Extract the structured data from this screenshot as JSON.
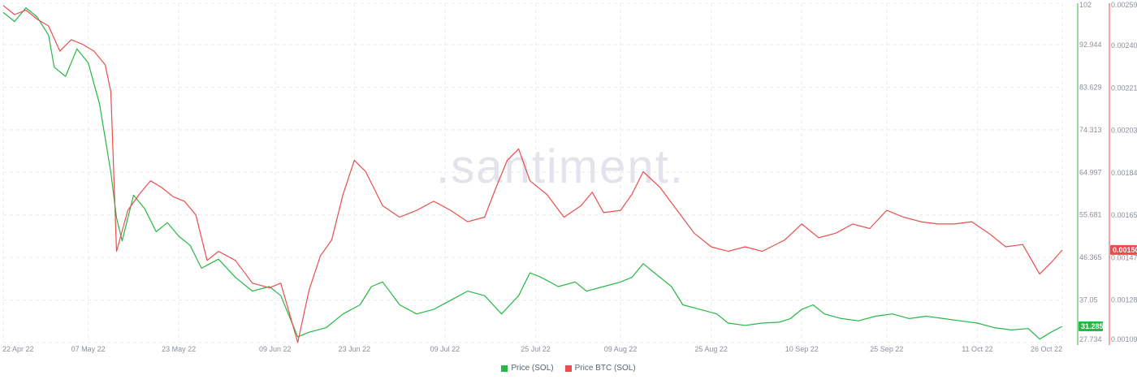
{
  "watermark": ".santiment.",
  "colors": {
    "sol_price": "#26b845",
    "btc_price": "#e94d4d",
    "grid": "#e6e8ec",
    "axis": "#8a8f99"
  },
  "chart_data": {
    "type": "line",
    "x_dates": [
      "22 Apr 22",
      "07 May 22",
      "23 May 22",
      "09 Jun 22",
      "23 Jun 22",
      "09 Jul 22",
      "25 Jul 22",
      "09 Aug 22",
      "25 Aug 22",
      "10 Sep 22",
      "25 Sep 22",
      "11 Oct 22",
      "26 Oct 22"
    ],
    "x_range": [
      "2022-04-22",
      "2022-10-26"
    ],
    "y_left": {
      "ticks": [
        "102",
        "92.944",
        "83.629",
        "74.313",
        "64.997",
        "55.681",
        "46.365",
        "37.05",
        "27.734"
      ],
      "range": [
        27.734,
        102
      ],
      "current_value": "31.285"
    },
    "y_right": {
      "ticks": [
        "0.00259",
        "0.002405",
        "0.002218",
        "0.002032",
        "0.001845",
        "0.001659",
        "0.001472",
        "0.001286",
        "0.001099"
      ],
      "range": [
        0.001099,
        0.00259
      ],
      "current_value": "0.001506"
    },
    "grid": true,
    "legend_position": "bottom-center",
    "series": [
      {
        "name": "Price (SOL)",
        "axis": "left",
        "points": [
          [
            "2022-04-22",
            100
          ],
          [
            "2022-04-24",
            98
          ],
          [
            "2022-04-26",
            101
          ],
          [
            "2022-04-28",
            99
          ],
          [
            "2022-04-30",
            95
          ],
          [
            "2022-05-01",
            88
          ],
          [
            "2022-05-03",
            86
          ],
          [
            "2022-05-05",
            92
          ],
          [
            "2022-05-07",
            89
          ],
          [
            "2022-05-09",
            80
          ],
          [
            "2022-05-11",
            65
          ],
          [
            "2022-05-12",
            55
          ],
          [
            "2022-05-13",
            50
          ],
          [
            "2022-05-15",
            60
          ],
          [
            "2022-05-17",
            57
          ],
          [
            "2022-05-19",
            52
          ],
          [
            "2022-05-21",
            54
          ],
          [
            "2022-05-23",
            51
          ],
          [
            "2022-05-25",
            49
          ],
          [
            "2022-05-27",
            44
          ],
          [
            "2022-05-30",
            46
          ],
          [
            "2022-06-02",
            42
          ],
          [
            "2022-06-05",
            39
          ],
          [
            "2022-06-08",
            40
          ],
          [
            "2022-06-10",
            38
          ],
          [
            "2022-06-13",
            29
          ],
          [
            "2022-06-15",
            30
          ],
          [
            "2022-06-18",
            31
          ],
          [
            "2022-06-21",
            34
          ],
          [
            "2022-06-24",
            36
          ],
          [
            "2022-06-26",
            40
          ],
          [
            "2022-06-28",
            41
          ],
          [
            "2022-07-01",
            36
          ],
          [
            "2022-07-04",
            34
          ],
          [
            "2022-07-07",
            35
          ],
          [
            "2022-07-10",
            37
          ],
          [
            "2022-07-13",
            39
          ],
          [
            "2022-07-16",
            38
          ],
          [
            "2022-07-19",
            34
          ],
          [
            "2022-07-22",
            38
          ],
          [
            "2022-07-24",
            43
          ],
          [
            "2022-07-26",
            42
          ],
          [
            "2022-07-29",
            40
          ],
          [
            "2022-08-01",
            41
          ],
          [
            "2022-08-03",
            39
          ],
          [
            "2022-08-06",
            40
          ],
          [
            "2022-08-09",
            41
          ],
          [
            "2022-08-11",
            42
          ],
          [
            "2022-08-13",
            45
          ],
          [
            "2022-08-15",
            43
          ],
          [
            "2022-08-18",
            40
          ],
          [
            "2022-08-20",
            36
          ],
          [
            "2022-08-23",
            35
          ],
          [
            "2022-08-26",
            34
          ],
          [
            "2022-08-28",
            32
          ],
          [
            "2022-08-31",
            31.5
          ],
          [
            "2022-09-03",
            32
          ],
          [
            "2022-09-06",
            32.2
          ],
          [
            "2022-09-08",
            33
          ],
          [
            "2022-09-10",
            35
          ],
          [
            "2022-09-12",
            36
          ],
          [
            "2022-09-14",
            34
          ],
          [
            "2022-09-17",
            33
          ],
          [
            "2022-09-20",
            32.5
          ],
          [
            "2022-09-23",
            33.5
          ],
          [
            "2022-09-26",
            34
          ],
          [
            "2022-09-29",
            33
          ],
          [
            "2022-10-02",
            33.5
          ],
          [
            "2022-10-05",
            33
          ],
          [
            "2022-10-08",
            32.5
          ],
          [
            "2022-10-11",
            32
          ],
          [
            "2022-10-14",
            31
          ],
          [
            "2022-10-17",
            30.5
          ],
          [
            "2022-10-20",
            30.8
          ],
          [
            "2022-10-22",
            28.5
          ],
          [
            "2022-10-24",
            30
          ],
          [
            "2022-10-26",
            31.285
          ]
        ]
      },
      {
        "name": "Price BTC (SOL)",
        "axis": "right",
        "points": [
          [
            "2022-04-22",
            0.00258
          ],
          [
            "2022-04-24",
            0.00254
          ],
          [
            "2022-04-26",
            0.00256
          ],
          [
            "2022-04-28",
            0.00252
          ],
          [
            "2022-04-30",
            0.00249
          ],
          [
            "2022-05-02",
            0.00238
          ],
          [
            "2022-05-04",
            0.00243
          ],
          [
            "2022-05-06",
            0.00241
          ],
          [
            "2022-05-08",
            0.00238
          ],
          [
            "2022-05-10",
            0.00232
          ],
          [
            "2022-05-11",
            0.0022
          ],
          [
            "2022-05-12",
            0.0015
          ],
          [
            "2022-05-14",
            0.00168
          ],
          [
            "2022-05-16",
            0.00175
          ],
          [
            "2022-05-18",
            0.00181
          ],
          [
            "2022-05-20",
            0.00178
          ],
          [
            "2022-05-22",
            0.00174
          ],
          [
            "2022-05-24",
            0.00172
          ],
          [
            "2022-05-26",
            0.00166
          ],
          [
            "2022-05-28",
            0.00146
          ],
          [
            "2022-05-30",
            0.0015
          ],
          [
            "2022-06-02",
            0.00146
          ],
          [
            "2022-06-05",
            0.00136
          ],
          [
            "2022-06-08",
            0.00134
          ],
          [
            "2022-06-10",
            0.00136
          ],
          [
            "2022-06-13",
            0.0011
          ],
          [
            "2022-06-15",
            0.00133
          ],
          [
            "2022-06-17",
            0.00148
          ],
          [
            "2022-06-19",
            0.00155
          ],
          [
            "2022-06-21",
            0.00175
          ],
          [
            "2022-06-23",
            0.0019
          ],
          [
            "2022-06-25",
            0.00185
          ],
          [
            "2022-06-28",
            0.0017
          ],
          [
            "2022-07-01",
            0.00165
          ],
          [
            "2022-07-04",
            0.00168
          ],
          [
            "2022-07-07",
            0.00172
          ],
          [
            "2022-07-10",
            0.00168
          ],
          [
            "2022-07-13",
            0.00163
          ],
          [
            "2022-07-16",
            0.00165
          ],
          [
            "2022-07-18",
            0.00178
          ],
          [
            "2022-07-20",
            0.0019
          ],
          [
            "2022-07-22",
            0.00195
          ],
          [
            "2022-07-24",
            0.00181
          ],
          [
            "2022-07-27",
            0.00175
          ],
          [
            "2022-07-30",
            0.00165
          ],
          [
            "2022-08-02",
            0.0017
          ],
          [
            "2022-08-04",
            0.00176
          ],
          [
            "2022-08-06",
            0.00167
          ],
          [
            "2022-08-09",
            0.00168
          ],
          [
            "2022-08-11",
            0.00175
          ],
          [
            "2022-08-13",
            0.00185
          ],
          [
            "2022-08-16",
            0.00178
          ],
          [
            "2022-08-19",
            0.00168
          ],
          [
            "2022-08-22",
            0.00158
          ],
          [
            "2022-08-25",
            0.00152
          ],
          [
            "2022-08-28",
            0.0015
          ],
          [
            "2022-08-31",
            0.00152
          ],
          [
            "2022-09-03",
            0.0015
          ],
          [
            "2022-09-07",
            0.00155
          ],
          [
            "2022-09-10",
            0.00162
          ],
          [
            "2022-09-13",
            0.00156
          ],
          [
            "2022-09-16",
            0.00158
          ],
          [
            "2022-09-19",
            0.00162
          ],
          [
            "2022-09-22",
            0.0016
          ],
          [
            "2022-09-25",
            0.00168
          ],
          [
            "2022-09-28",
            0.00165
          ],
          [
            "2022-10-01",
            0.00163
          ],
          [
            "2022-10-04",
            0.00162
          ],
          [
            "2022-10-07",
            0.00162
          ],
          [
            "2022-10-10",
            0.00163
          ],
          [
            "2022-10-13",
            0.00158
          ],
          [
            "2022-10-16",
            0.00152
          ],
          [
            "2022-10-19",
            0.00153
          ],
          [
            "2022-10-22",
            0.0014
          ],
          [
            "2022-10-24",
            0.00145
          ],
          [
            "2022-10-26",
            0.001506
          ]
        ]
      }
    ]
  }
}
